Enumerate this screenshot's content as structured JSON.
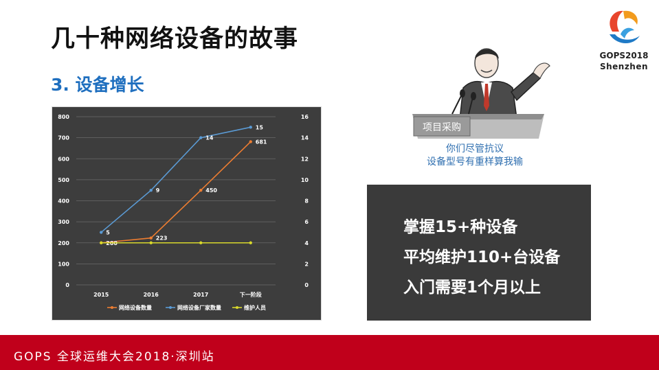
{
  "slide": {
    "title": "几十种网络设备的故事",
    "subtitle": "3.  设备增长",
    "logo_text_line1": "GOPS2018",
    "logo_text_line2": "Shenzhen",
    "cartoon_sign": "项目采购",
    "caption_line1": "你们尽管抗议",
    "caption_line2": "设备型号有重样算我输",
    "info_lines": [
      "掌握15+种设备",
      "平均维护110+台设备",
      "入门需要1个月以上"
    ],
    "footer": "GOPS 全球运维大会2018·深圳站"
  },
  "colors": {
    "title": "#111111",
    "subtitle": "#1f6fbf",
    "footer_bg": "#c0001b",
    "chart_bg": "#3d3d3d",
    "info_bg": "#3a3a3a",
    "series_devices": "#ed7d31",
    "series_vendors": "#5b9bd5",
    "series_staff": "#d9d92b"
  },
  "chart_data": {
    "type": "line",
    "categories": [
      "2015",
      "2016",
      "2017",
      "下一阶段"
    ],
    "y_left": {
      "ylim": [
        0,
        800
      ],
      "ticks": [
        "0",
        "100",
        "200",
        "300",
        "400",
        "500",
        "600",
        "700",
        "800"
      ]
    },
    "y_right": {
      "ylim": [
        0,
        16
      ],
      "ticks": [
        "0",
        "2",
        "4",
        "6",
        "8",
        "10",
        "12",
        "14",
        "16"
      ]
    },
    "grid": true,
    "legend_position": "bottom",
    "series": [
      {
        "name": "网络设备数量",
        "axis": "left",
        "values": [
          200,
          223,
          450,
          681
        ],
        "labels": [
          "200",
          "223",
          "450",
          "681"
        ]
      },
      {
        "name": "网络设备厂家数量",
        "axis": "right",
        "values": [
          5,
          9,
          14,
          15
        ],
        "labels": [
          "5",
          "9",
          "14",
          "15"
        ]
      },
      {
        "name": "维护人员",
        "axis": "right",
        "values": [
          4,
          4,
          4,
          4
        ],
        "labels": []
      }
    ]
  }
}
